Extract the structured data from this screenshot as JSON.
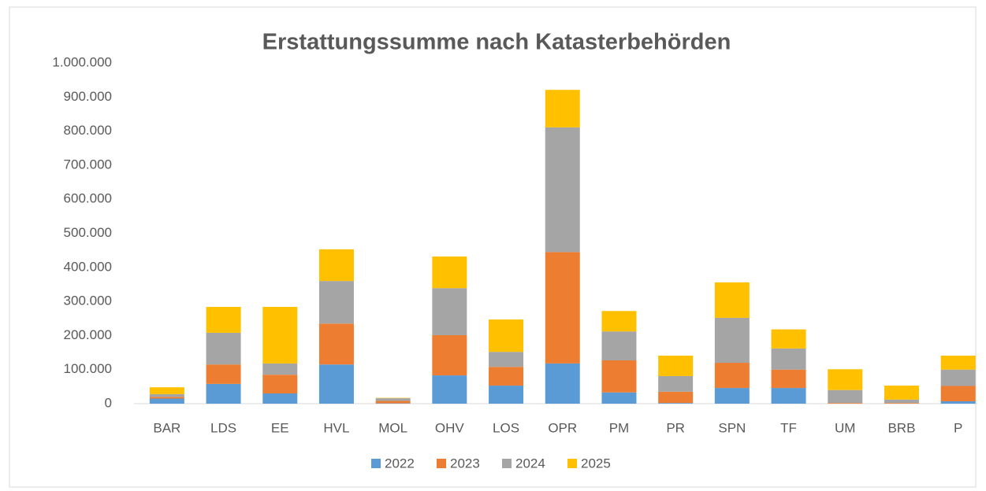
{
  "chart_data": {
    "type": "stacked_bar",
    "title": "Erstattungssumme nach Katasterbehörden",
    "categories": [
      "BAR",
      "LDS",
      "EE",
      "HVL",
      "MOL",
      "OHV",
      "LOS",
      "OPR",
      "PM",
      "PR",
      "SPN",
      "TF",
      "UM",
      "BRB",
      "P"
    ],
    "series": [
      {
        "name": "2022",
        "color": "#5b9bd5",
        "values": [
          15000,
          58000,
          30000,
          115000,
          1000,
          83000,
          53000,
          118000,
          33000,
          2000,
          46000,
          46000,
          0,
          0,
          7000
        ]
      },
      {
        "name": "2023",
        "color": "#ed7d31",
        "values": [
          5000,
          57000,
          55000,
          120000,
          7000,
          118000,
          55000,
          327000,
          94000,
          33000,
          74000,
          54000,
          2000,
          2000,
          45000
        ]
      },
      {
        "name": "2024",
        "color": "#a5a5a5",
        "values": [
          8000,
          93000,
          33000,
          125000,
          8000,
          138000,
          44000,
          366000,
          85000,
          46000,
          132000,
          62000,
          38000,
          10000,
          48000
        ]
      },
      {
        "name": "2025",
        "color": "#ffc000",
        "values": [
          20000,
          76000,
          166000,
          93000,
          1000,
          93000,
          95000,
          110000,
          60000,
          60000,
          104000,
          56000,
          61000,
          41000,
          41000
        ]
      }
    ],
    "ylim": [
      0,
      1000000
    ],
    "yticks": [
      0,
      {
        "value": 100000,
        "label": "100.000"
      },
      {
        "value": 200000,
        "label": "200.000"
      },
      {
        "value": 300000,
        "label": "300.000"
      },
      {
        "value": 400000,
        "label": "400.000"
      },
      {
        "value": 500000,
        "label": "500.000"
      },
      {
        "value": 600000,
        "label": "600.000"
      },
      {
        "value": 700000,
        "label": "700.000"
      },
      {
        "value": 800000,
        "label": "800.000"
      },
      {
        "value": 900000,
        "label": "900.000"
      },
      {
        "value": 1000000,
        "label": "1.000.000"
      }
    ],
    "grid": false,
    "legend": "bottom"
  }
}
